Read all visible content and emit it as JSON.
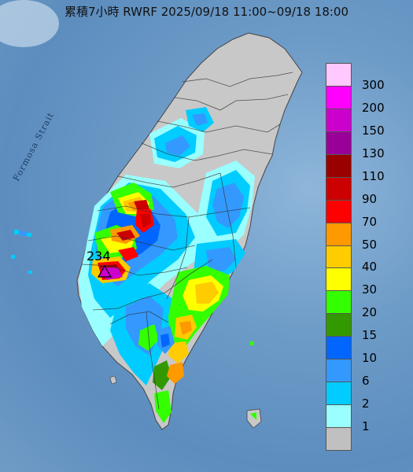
{
  "title": "累積7小時 RWRF 2025/09/18 11:00~09/18 18:00",
  "strait_label": "Formosa Strait",
  "max_label": "234",
  "legend": {
    "levels": [
      "300",
      "200",
      "150",
      "130",
      "110",
      "90",
      "70",
      "50",
      "40",
      "30",
      "20",
      "15",
      "10",
      "6",
      "2",
      "1"
    ],
    "colors": [
      "#ffc8ff",
      "#ff00ff",
      "#cc00cc",
      "#990099",
      "#990000",
      "#cc0000",
      "#ff0000",
      "#ff9900",
      "#ffcc00",
      "#ffff00",
      "#33ff00",
      "#339900",
      "#0066ff",
      "#3399ff",
      "#00ccff",
      "#99ffff",
      "#c0c0c0"
    ]
  },
  "map": {
    "land_color": "#c8c8c8",
    "sea_color": "#6e9cc8",
    "max_marker_color": "#cc00cc"
  }
}
